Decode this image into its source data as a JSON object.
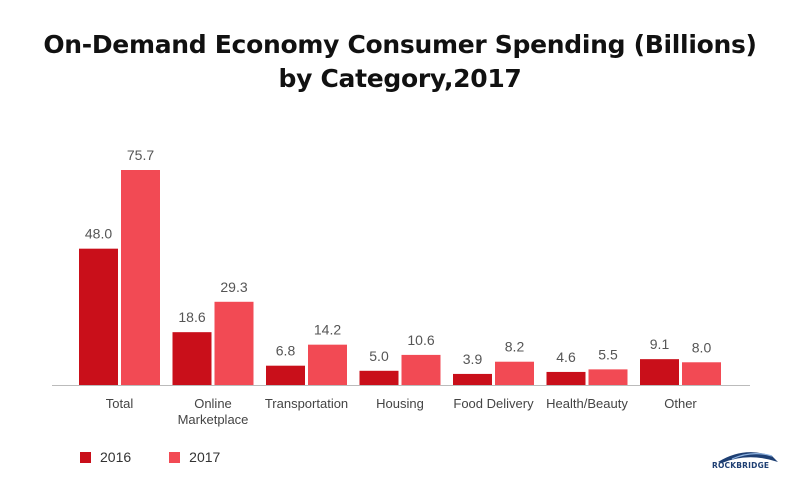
{
  "chart_data": {
    "type": "bar",
    "title": "On-Demand Economy Consumer Spending (Billions)",
    "subtitle": "by Category,2017",
    "categories": [
      "Total",
      "Online Marketplace",
      "Transportation",
      "Housing",
      "Food Delivery",
      "Health/Beauty",
      "Other"
    ],
    "category_lines": [
      [
        "Total"
      ],
      [
        "Online",
        "Marketplace"
      ],
      [
        "Transportation"
      ],
      [
        "Housing"
      ],
      [
        "Food Delivery"
      ],
      [
        "Health/Beauty"
      ],
      [
        "Other"
      ]
    ],
    "series": [
      {
        "name": "2016",
        "color": "#c90f1a",
        "values": [
          48.0,
          18.6,
          6.8,
          5.0,
          3.9,
          4.6,
          9.1
        ],
        "labels": [
          "48.0",
          "18.6",
          "6.8",
          "5.0",
          "3.9",
          "4.6",
          "9.1"
        ]
      },
      {
        "name": "2017",
        "color": "#f24a54",
        "values": [
          75.7,
          29.3,
          14.2,
          10.6,
          8.2,
          5.5,
          8.0
        ],
        "labels": [
          "75.7",
          "29.3",
          "14.2",
          "10.6",
          "8.2",
          "5.5",
          "8.0"
        ]
      }
    ],
    "ylim": [
      0,
      75.7
    ],
    "grid": false,
    "legend": "bottom-left"
  },
  "logo": {
    "text": "ROCKBRIDGE",
    "color": "#1e3f73"
  }
}
